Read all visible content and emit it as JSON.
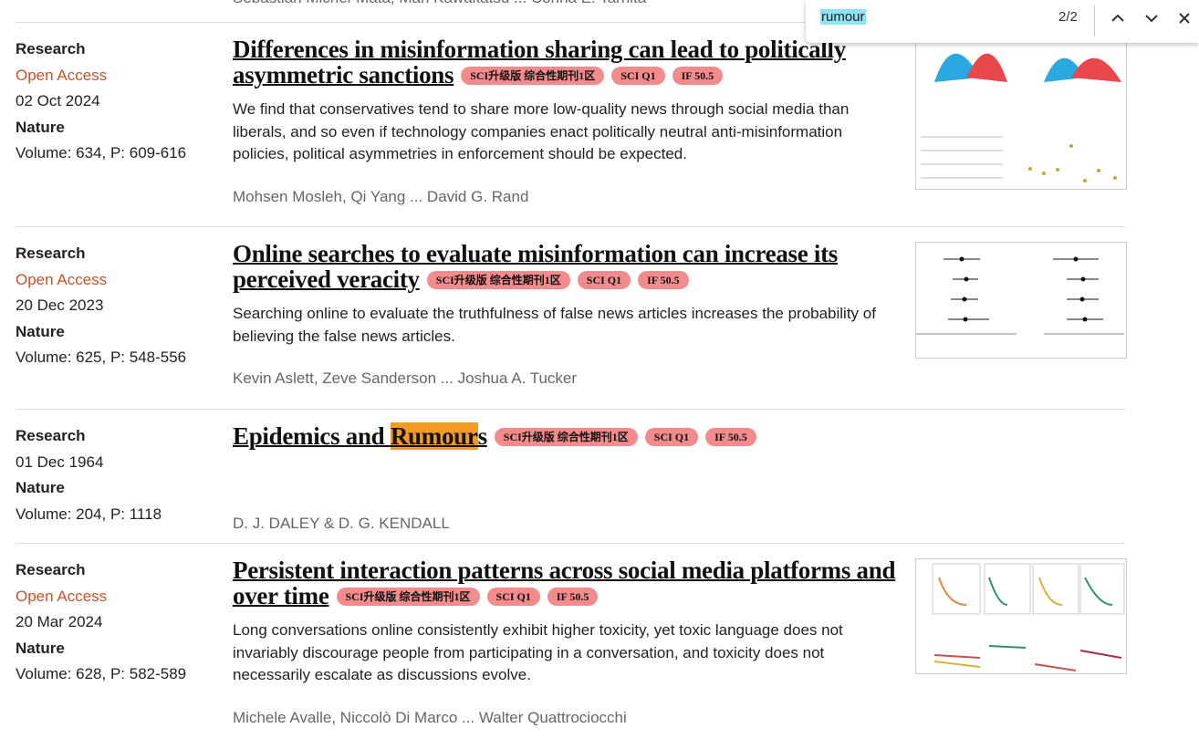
{
  "top_authors": "Sebastian Michel-Mata, Mari Kawakatsu ... Corina E. Tarnita",
  "find_bar": {
    "query": "rumour",
    "count": "2/2"
  },
  "articles": [
    {
      "type": "Research",
      "access": "Open Access",
      "date": "02 Oct 2024",
      "journal": "Nature",
      "volume": "Volume: 634, P: 609-616",
      "title": "Differences in misinformation sharing can lead to politically asymmetric sanctions",
      "badges": [
        "SCI升级版 综合性期刊1区",
        "SCI Q1",
        "IF 50.5"
      ],
      "abstract": "We find that conservatives tend to share more low-quality news through social media than liberals, and so even if technology companies enact politically neutral anti-misinformation policies, political asymmetries in enforcement should be expected.",
      "authors": "Mohsen Mosleh, Qi Yang ... David G. Rand"
    },
    {
      "type": "Research",
      "access": "Open Access",
      "date": "20 Dec 2023",
      "journal": "Nature",
      "volume": "Volume: 625, P: 548-556",
      "title": "Online searches to evaluate misinformation can increase its perceived veracity",
      "badges": [
        "SCI升级版 综合性期刊1区",
        "SCI Q1",
        "IF 50.5"
      ],
      "abstract": "Searching online to evaluate the truthfulness of false news articles increases the probability of believing the false news articles.",
      "authors": "Kevin Aslett, Zeve Sanderson ... Joshua A. Tucker"
    },
    {
      "type": "Research",
      "date": "01 Dec 1964",
      "journal": "Nature",
      "volume": "Volume: 204, P: 1118",
      "title_segments": {
        "before": "Epidemics and ",
        "match": "Rumour",
        "after": "s"
      },
      "badges": [
        "SCI升级版 综合性期刊1区",
        "SCI Q1",
        "IF 50.5"
      ],
      "authors": "D. J. DALEY & D. G. KENDALL"
    },
    {
      "type": "Research",
      "access": "Open Access",
      "date": "20 Mar 2024",
      "journal": "Nature",
      "volume": "Volume: 628, P: 582-589",
      "title": "Persistent interaction patterns across social media platforms and over time",
      "badges": [
        "SCI升级版 综合性期刊1区",
        "SCI Q1",
        "IF 50.5"
      ],
      "abstract": "Long conversations online consistently exhibit higher toxicity, yet toxic language does not invariably discourage people from participating in a conversation, and toxicity does not necessarily escalate as discussions evolve.",
      "authors": "Michele Avalle, Niccolò Di Marco ... Walter Quattrociocchi"
    }
  ]
}
